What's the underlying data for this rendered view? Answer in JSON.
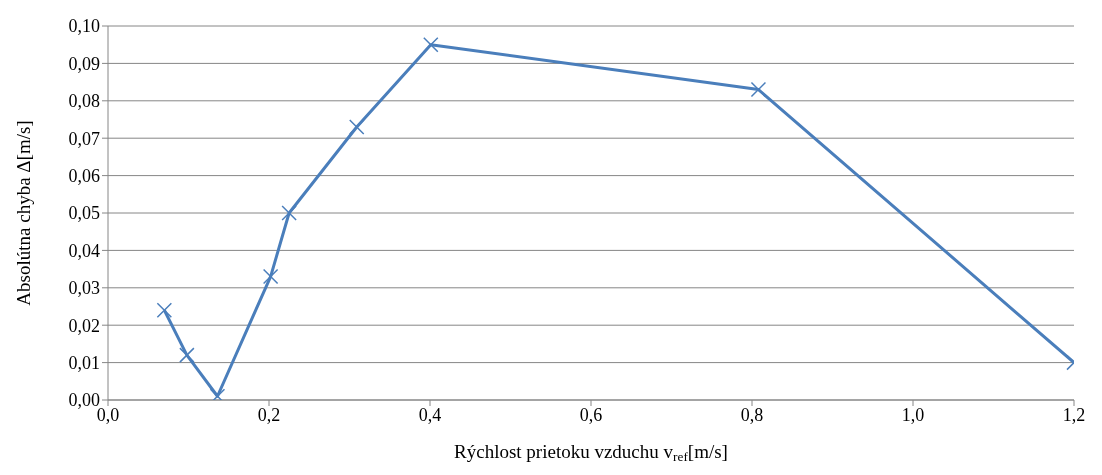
{
  "chart_data": {
    "type": "line",
    "xlabel": "Rýchlost prietoku vzduchu v$_{ref}$[m/s]",
    "ylabel": "Absolútna chyba Δ[m/s]",
    "x": [
      0.07,
      0.098,
      0.136,
      0.202,
      0.225,
      0.309,
      0.401,
      0.808,
      1.2
    ],
    "series": [
      {
        "color": "#4a7ebb",
        "values": [
          0.024,
          0.012,
          0.001,
          0.033,
          0.05,
          0.073,
          0.095,
          0.083,
          0.01
        ]
      }
    ],
    "xlim": [
      0,
      1.2
    ],
    "xticks": [
      {
        "value": 0,
        "label": "0,0"
      },
      {
        "value": 0.2,
        "label": "0,2"
      },
      {
        "value": 0.4,
        "label": "0,4"
      },
      {
        "value": 0.6,
        "label": "0,6"
      },
      {
        "value": 0.8,
        "label": "0,8"
      },
      {
        "value": 1.0,
        "label": "1,0"
      },
      {
        "value": 1.2,
        "label": "1,2"
      }
    ],
    "ylim": [
      0,
      0.1
    ],
    "yticks": [
      {
        "value": 0,
        "label": "0,00"
      },
      {
        "value": 0.01,
        "label": "0,01"
      },
      {
        "value": 0.02,
        "label": "0,02"
      },
      {
        "value": 0.03,
        "label": "0,03"
      },
      {
        "value": 0.04,
        "label": "0,04"
      },
      {
        "value": 0.05,
        "label": "0,05"
      },
      {
        "value": 0.06,
        "label": "0,06"
      },
      {
        "value": 0.07,
        "label": "0,07"
      },
      {
        "value": 0.08,
        "label": "0,08"
      },
      {
        "value": 0.09,
        "label": "0,09"
      },
      {
        "value": 0.1,
        "label": "0,10"
      }
    ],
    "grid": "y",
    "legend": false,
    "marker": "cross",
    "line_style": "solid"
  }
}
